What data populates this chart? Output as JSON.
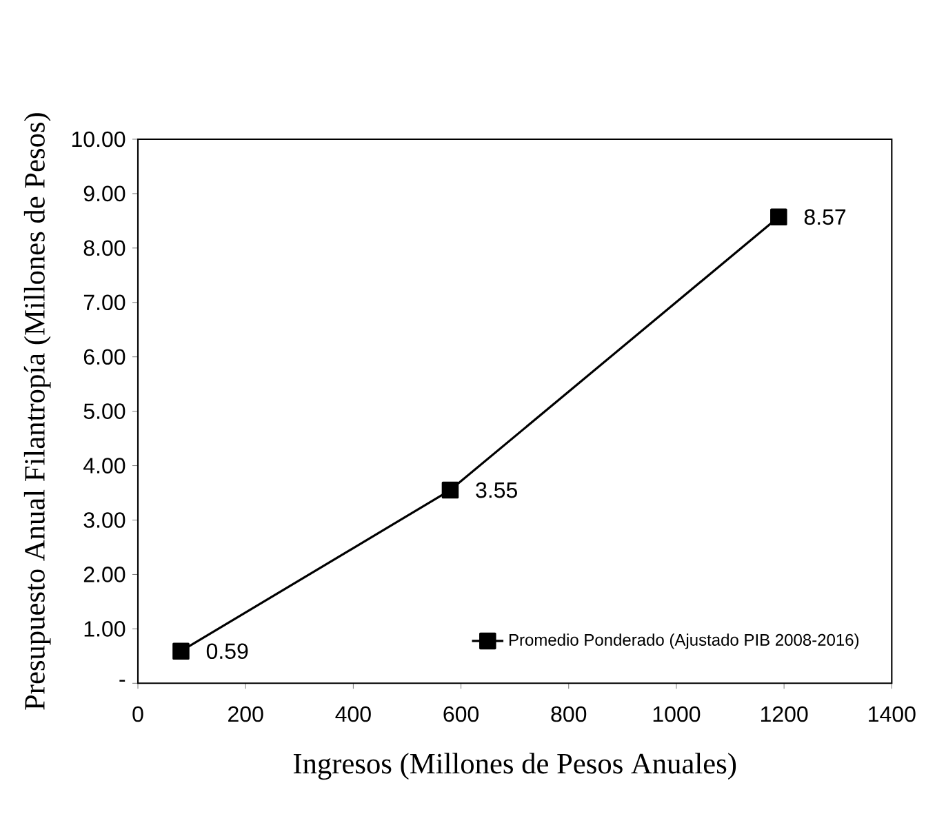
{
  "chart_data": {
    "type": "line",
    "xlabel": "Ingresos (Millones de Pesos Anuales)",
    "ylabel": "Presupuesto Anual  Filantropía  (Millones de Pesos)",
    "x": [
      80,
      580,
      1190
    ],
    "series": [
      {
        "name": "Promedio Ponderado (Ajustado PIB 2008-2016)",
        "color": "#000000",
        "values": [
          0.59,
          3.55,
          8.57
        ]
      }
    ],
    "xlim": [
      0,
      1400
    ],
    "xticks": [
      0,
      200,
      400,
      600,
      800,
      1000,
      1200,
      1400
    ],
    "ylim": [
      0,
      10
    ],
    "yticks": [
      {
        "value": 0,
        "label": "-"
      },
      {
        "value": 1,
        "label": "1.00"
      },
      {
        "value": 2,
        "label": "2.00"
      },
      {
        "value": 3,
        "label": "3.00"
      },
      {
        "value": 4,
        "label": "4.00"
      },
      {
        "value": 5,
        "label": "5.00"
      },
      {
        "value": 6,
        "label": "6.00"
      },
      {
        "value": 7,
        "label": "7.00"
      },
      {
        "value": 8,
        "label": "8.00"
      },
      {
        "value": 9,
        "label": "9.00"
      },
      {
        "value": 10,
        "label": "10.00"
      }
    ],
    "data_labels": true,
    "legend": "bottom right",
    "marker": "square",
    "line_style": "solid",
    "grid": false
  }
}
